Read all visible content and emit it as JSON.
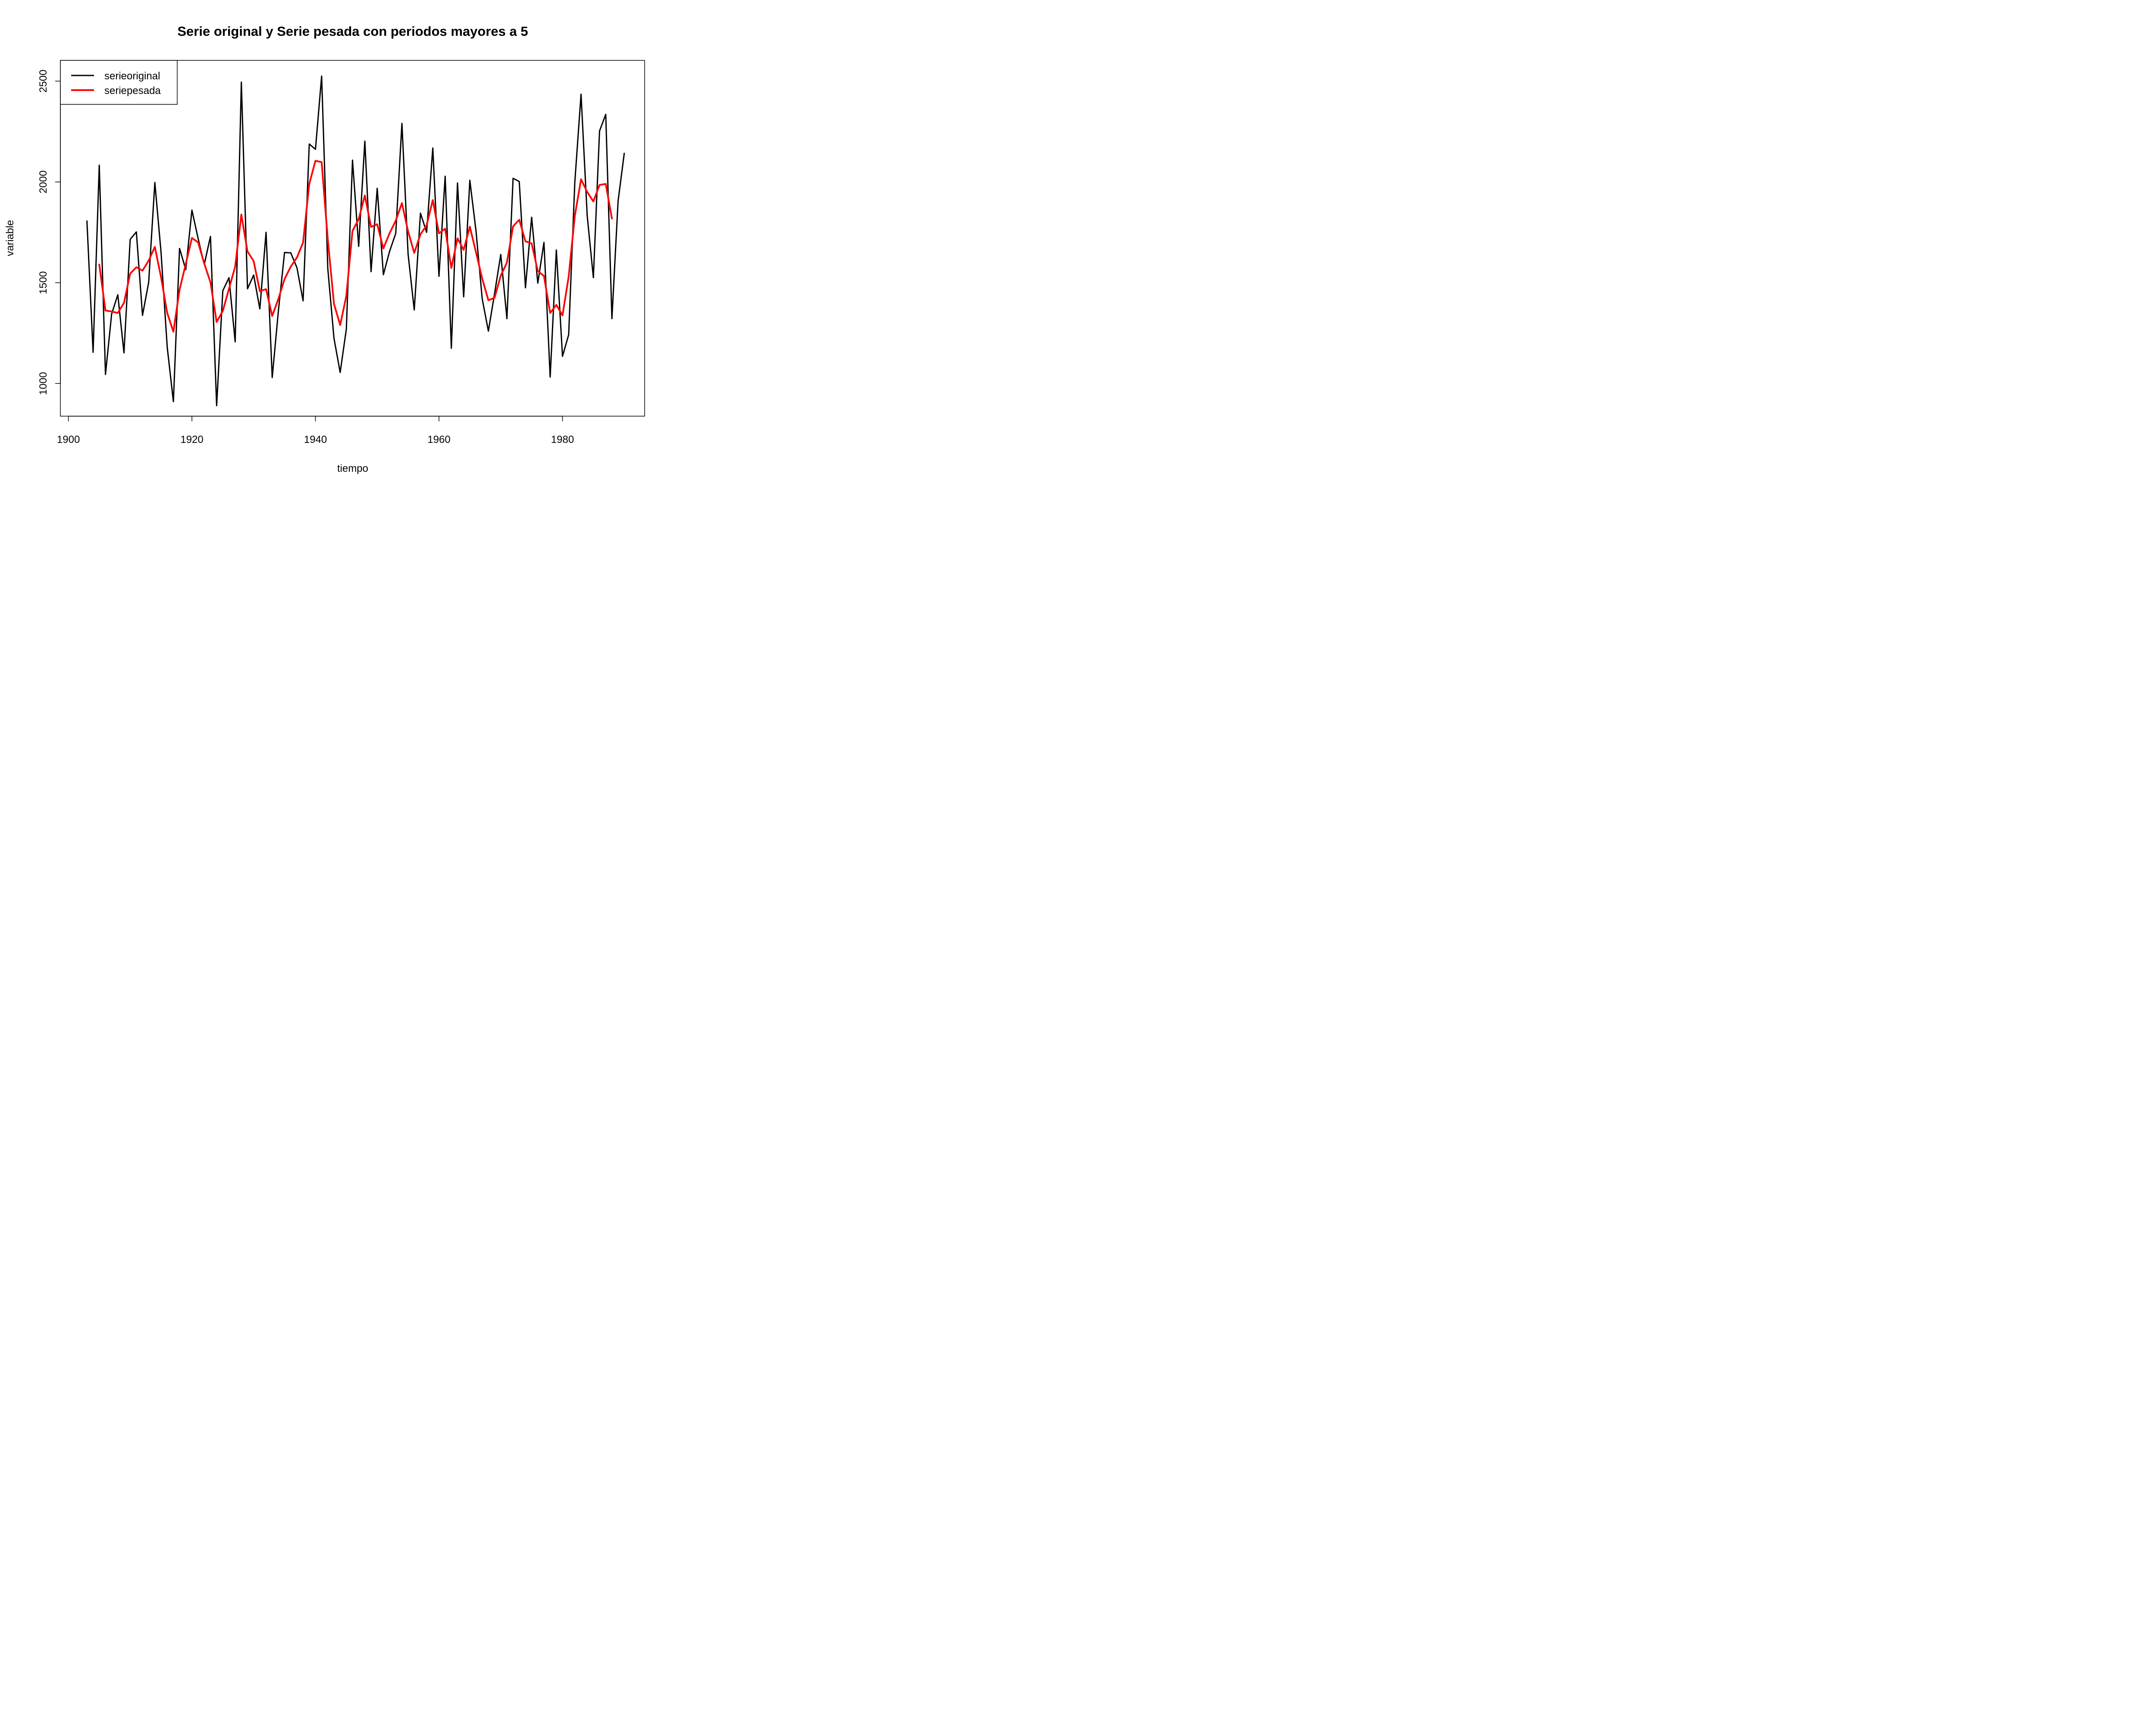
{
  "chart_data": {
    "type": "line",
    "title": "Serie original y Serie pesada con periodos mayores a  5",
    "xlabel": "tiempo",
    "ylabel": "variable",
    "xlim": [
      1898.7,
      1993.3
    ],
    "ylim": [
      838,
      2603
    ],
    "xticks": [
      1900,
      1920,
      1940,
      1960,
      1980
    ],
    "yticks": [
      1000,
      1500,
      2000,
      2500
    ],
    "legend_position": "top-left",
    "grid": false,
    "series": [
      {
        "name": "serieoriginal",
        "color": "#000000",
        "x": [
          1903,
          1904,
          1905,
          1906,
          1907,
          1908,
          1909,
          1910,
          1911,
          1912,
          1913,
          1914,
          1915,
          1916,
          1917,
          1918,
          1919,
          1920,
          1921,
          1922,
          1923,
          1924,
          1925,
          1926,
          1927,
          1928,
          1929,
          1930,
          1931,
          1932,
          1933,
          1934,
          1935,
          1936,
          1937,
          1938,
          1939,
          1940,
          1941,
          1942,
          1943,
          1944,
          1945,
          1946,
          1947,
          1948,
          1949,
          1950,
          1951,
          1952,
          1953,
          1954,
          1955,
          1956,
          1957,
          1958,
          1959,
          1960,
          1961,
          1962,
          1963,
          1964,
          1965,
          1966,
          1967,
          1968,
          1969,
          1970,
          1971,
          1972,
          1973,
          1974,
          1975,
          1976,
          1977,
          1978,
          1979,
          1980,
          1981,
          1982,
          1983,
          1984,
          1985,
          1986,
          1987,
          1988,
          1989,
          1990
        ],
        "values": [
          1806,
          1155,
          2083,
          1045,
          1345,
          1440,
          1152,
          1715,
          1752,
          1338,
          1502,
          1997,
          1650,
          1180,
          910,
          1670,
          1565,
          1860,
          1720,
          1590,
          1730,
          890,
          1460,
          1525,
          1207,
          2495,
          1470,
          1538,
          1370,
          1750,
          1030,
          1360,
          1650,
          1648,
          1575,
          1410,
          2188,
          2162,
          2525,
          1570,
          1225,
          1055,
          1270,
          2108,
          1680,
          2202,
          1555,
          1968,
          1540,
          1655,
          1745,
          2290,
          1642,
          1365,
          1845,
          1750,
          2168,
          1532,
          2028,
          1175,
          1995,
          1430,
          2008,
          1755,
          1420,
          1260,
          1445,
          1640,
          1322,
          2018,
          2002,
          1475,
          1825,
          1498,
          1700,
          1032,
          1662,
          1135,
          1242,
          2000,
          2435,
          1832,
          1525,
          2253,
          2335,
          1322,
          1905,
          2142
        ]
      },
      {
        "name": "seriepesada",
        "color": "#ff0000",
        "x": [
          1905,
          1906,
          1907,
          1908,
          1909,
          1910,
          1911,
          1912,
          1913,
          1914,
          1915,
          1916,
          1917,
          1918,
          1919,
          1920,
          1921,
          1922,
          1923,
          1924,
          1925,
          1926,
          1927,
          1928,
          1929,
          1930,
          1931,
          1932,
          1933,
          1934,
          1935,
          1936,
          1937,
          1938,
          1939,
          1940,
          1941,
          1942,
          1943,
          1944,
          1945,
          1946,
          1947,
          1948,
          1949,
          1950,
          1951,
          1952,
          1953,
          1954,
          1955,
          1956,
          1957,
          1958,
          1959,
          1960,
          1961,
          1962,
          1963,
          1964,
          1965,
          1966,
          1967,
          1968,
          1969,
          1970,
          1971,
          1972,
          1973,
          1974,
          1975,
          1976,
          1977,
          1978,
          1979,
          1980,
          1981,
          1982,
          1983,
          1984,
          1985,
          1986,
          1987,
          1988
        ],
        "values": [
          1590,
          1362,
          1357,
          1350,
          1400,
          1545,
          1577,
          1560,
          1610,
          1678,
          1527,
          1350,
          1257,
          1465,
          1593,
          1722,
          1700,
          1595,
          1502,
          1305,
          1360,
          1470,
          1580,
          1838,
          1655,
          1607,
          1458,
          1468,
          1335,
          1420,
          1518,
          1580,
          1625,
          1700,
          1990,
          2105,
          2098,
          1715,
          1395,
          1290,
          1435,
          1757,
          1815,
          1933,
          1777,
          1790,
          1670,
          1745,
          1808,
          1895,
          1755,
          1648,
          1740,
          1785,
          1910,
          1745,
          1768,
          1573,
          1720,
          1663,
          1778,
          1650,
          1520,
          1413,
          1425,
          1535,
          1600,
          1780,
          1812,
          1705,
          1695,
          1558,
          1533,
          1350,
          1390,
          1338,
          1530,
          1832,
          2013,
          1950,
          1903,
          1985,
          1990,
          1818
        ]
      }
    ]
  }
}
